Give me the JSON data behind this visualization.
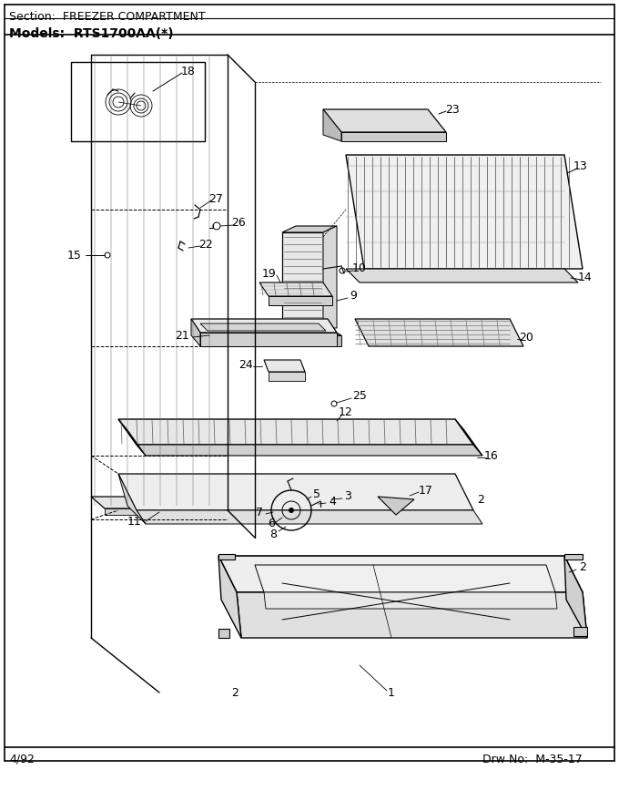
{
  "section_label": "Section:  FREEZER COMPARTMENT",
  "models_label": "Models:  RTS1700AA(*)",
  "date_label": "4/92",
  "drw_label": "Drw No:  M-35-17",
  "bg_color": "#ffffff",
  "line_color": "#000000",
  "title_fontsize": 9,
  "label_fontsize": 9,
  "number_fontsize": 9
}
